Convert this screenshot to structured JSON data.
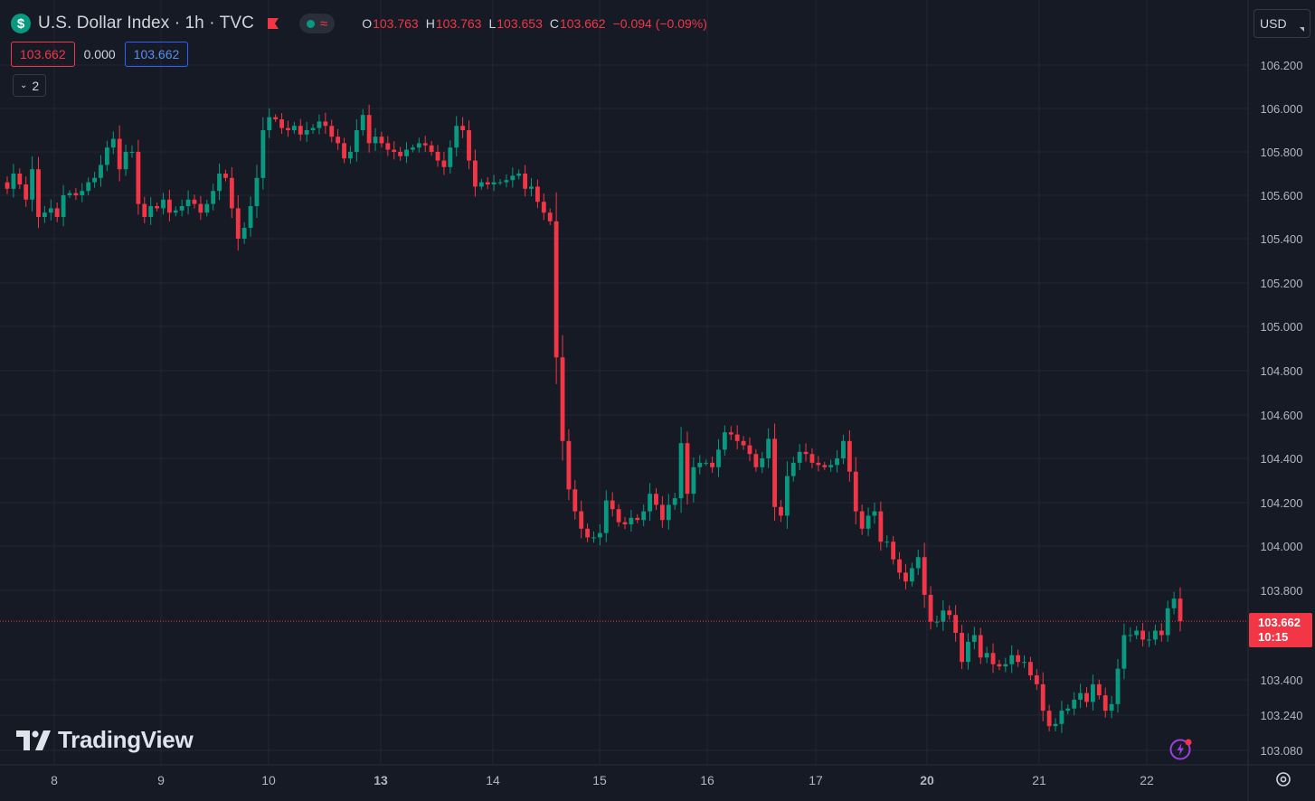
{
  "header": {
    "symbol_icon": "$",
    "title": "U.S. Dollar Index · 1h · TVC",
    "ohlc": [
      {
        "key": "O",
        "value": "103.763"
      },
      {
        "key": "H",
        "value": "103.763"
      },
      {
        "key": "L",
        "value": "103.653"
      },
      {
        "key": "C",
        "value": "103.662"
      }
    ],
    "change": "−0.094 (−0.09%)",
    "status_icon": "market-status-dot",
    "wave_icon": "≈"
  },
  "trade_row": {
    "sell_price": "103.662",
    "spread": "0.000",
    "buy_price": "103.662"
  },
  "collapse_button": {
    "count": "2"
  },
  "currency_button": {
    "label": "USD"
  },
  "last_price_tag": {
    "price": "103.662",
    "countdown": "10:15"
  },
  "logo_text": "TradingView",
  "colors": {
    "background": "#161a25",
    "grid": "#242733",
    "up": "#089981",
    "down": "#f23645",
    "axis_text": "#b2b5be"
  },
  "chart_data": {
    "type": "candlestick",
    "symbol": "U.S. Dollar Index",
    "interval": "1h",
    "y_ticks": [
      106.2,
      106.0,
      105.8,
      105.6,
      105.4,
      105.2,
      105.0,
      104.8,
      104.6,
      104.4,
      104.2,
      104.0,
      103.8,
      103.4,
      103.24,
      103.08
    ],
    "y_tick_labels": [
      "106.200",
      "106.000",
      "105.800",
      "105.600",
      "105.400",
      "105.200",
      "105.000",
      "104.800",
      "104.600",
      "104.400",
      "104.200",
      "104.000",
      "103.800",
      "103.400",
      "103.240",
      "103.080"
    ],
    "x_tick_labels": [
      "8",
      "9",
      "10",
      "13",
      "14",
      "15",
      "16",
      "17",
      "20",
      "21",
      "22"
    ],
    "x_tick_bold": [
      false,
      false,
      false,
      true,
      false,
      false,
      false,
      false,
      true,
      false,
      false
    ],
    "last_price": 103.662,
    "path": [
      105.66,
      105.63,
      105.7,
      105.65,
      105.58,
      105.72,
      105.5,
      105.52,
      105.54,
      105.5,
      105.6,
      105.61,
      105.6,
      105.62,
      105.66,
      105.68,
      105.74,
      105.82,
      105.86,
      105.72,
      105.8,
      105.8,
      105.56,
      105.5,
      105.55,
      105.54,
      105.58,
      105.52,
      105.53,
      105.55,
      105.58,
      105.56,
      105.52,
      105.56,
      105.62,
      105.7,
      105.68,
      105.54,
      105.4,
      105.45,
      105.55,
      105.68,
      105.9,
      105.96,
      105.95,
      105.91,
      105.9,
      105.92,
      105.88,
      105.9,
      105.91,
      105.94,
      105.92,
      105.87,
      105.84,
      105.77,
      105.8,
      105.9,
      105.97,
      105.84,
      105.87,
      105.84,
      105.81,
      105.8,
      105.78,
      105.81,
      105.82,
      105.84,
      105.83,
      105.8,
      105.76,
      105.73,
      105.82,
      105.92,
      105.9,
      105.76,
      105.64,
      105.66,
      105.65,
      105.66,
      105.66,
      105.67,
      105.69,
      105.7,
      105.63,
      105.64,
      105.57,
      105.52,
      105.48,
      104.86,
      104.48,
      104.26,
      104.16,
      104.08,
      104.04,
      104.04,
      104.06,
      104.21,
      104.17,
      104.11,
      104.1,
      104.13,
      104.12,
      104.16,
      104.24,
      104.19,
      104.12,
      104.19,
      104.22,
      104.47,
      104.24,
      104.36,
      104.38,
      104.38,
      104.36,
      104.44,
      104.52,
      104.51,
      104.48,
      104.46,
      104.42,
      104.36,
      104.4,
      104.49,
      104.18,
      104.14,
      104.32,
      104.38,
      104.43,
      104.42,
      104.38,
      104.37,
      104.36,
      104.37,
      104.4,
      104.48,
      104.34,
      104.16,
      104.08,
      104.14,
      104.16,
      104.02,
      104.02,
      103.94,
      103.88,
      103.84,
      103.9,
      103.95,
      103.78,
      103.66,
      103.66,
      103.71,
      103.69,
      103.61,
      103.48,
      103.57,
      103.6,
      103.5,
      103.52,
      103.47,
      103.46,
      103.47,
      103.51,
      103.48,
      103.48,
      103.42,
      103.38,
      103.26,
      103.19,
      103.2,
      103.26,
      103.27,
      103.31,
      103.34,
      103.3,
      103.38,
      103.33,
      103.26,
      103.29,
      103.45,
      103.6,
      103.6,
      103.62,
      103.58,
      103.58,
      103.62,
      103.6,
      103.72,
      103.763,
      103.662
    ]
  }
}
